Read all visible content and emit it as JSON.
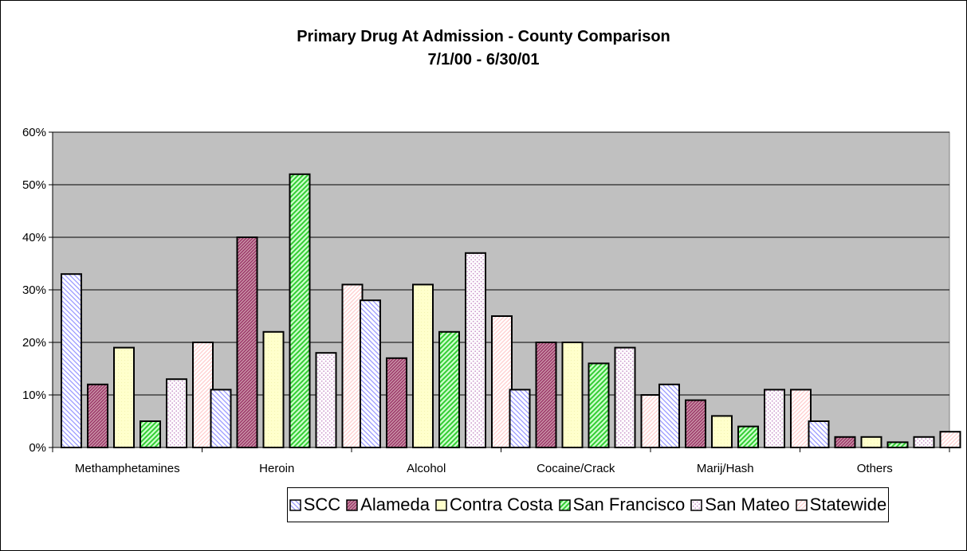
{
  "chart_data": {
    "type": "bar",
    "title_line1": "Primary Drug At Admission - County Comparison",
    "title_line2": "7/1/00 - 6/30/01",
    "categories": [
      "Methamphetamines",
      "Heroin",
      "Alcohol",
      "Cocaine/Crack",
      "Marij/Hash",
      "Others"
    ],
    "series": [
      {
        "name": "SCC",
        "values": [
          33,
          11,
          28,
          11,
          12,
          5
        ]
      },
      {
        "name": "Alameda",
        "values": [
          12,
          40,
          17,
          20,
          9,
          2
        ]
      },
      {
        "name": "Contra Costa",
        "values": [
          19,
          22,
          31,
          20,
          6,
          2
        ]
      },
      {
        "name": "San Francisco",
        "values": [
          5,
          52,
          22,
          16,
          4,
          1
        ]
      },
      {
        "name": "San Mateo",
        "values": [
          13,
          18,
          37,
          19,
          11,
          2
        ]
      },
      {
        "name": "Statewide",
        "values": [
          20,
          31,
          25,
          10,
          11,
          3
        ]
      }
    ],
    "ylim": [
      0,
      60
    ],
    "yticks": [
      "0%",
      "10%",
      "20%",
      "30%",
      "40%",
      "50%",
      "60%"
    ],
    "grid": true,
    "legend_position": "bottom",
    "plot_background": "#c0c0c0",
    "series_colors": [
      "#9999ff",
      "#993366",
      "#ffffcc",
      "#33cc33",
      "#ffccff",
      "#ffcccc"
    ]
  }
}
